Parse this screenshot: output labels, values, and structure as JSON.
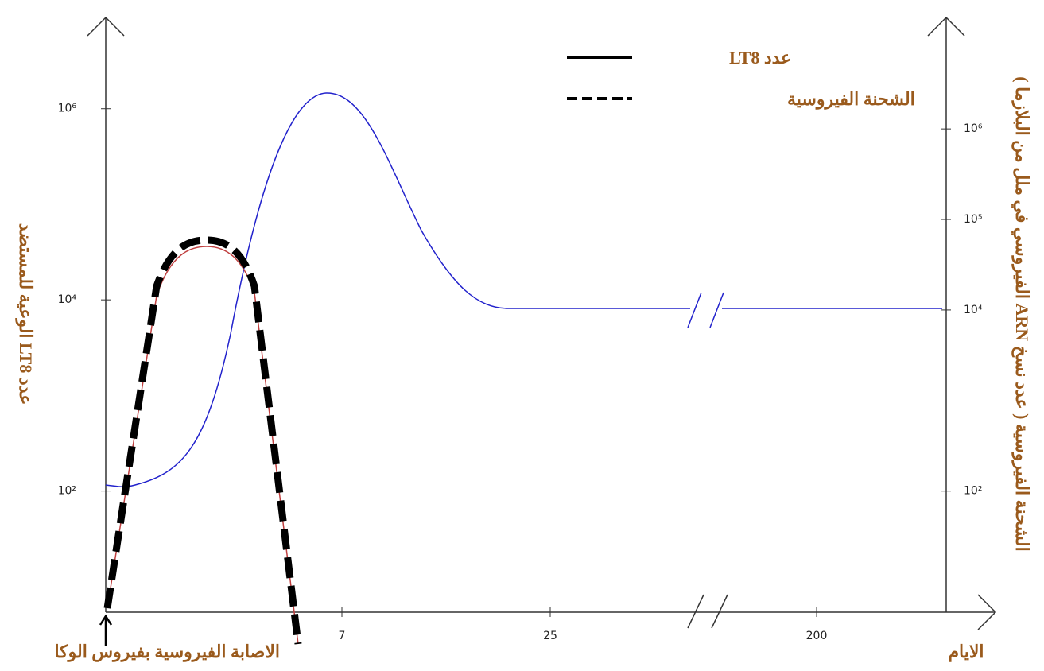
{
  "chart_data": {
    "type": "line",
    "legend": [
      "عدد LT8",
      "الشحنة الفيروسية"
    ],
    "ylabel": "عدد LT8 الوعية للمستضد",
    "y2label": "الشحنة الفيروسية ( عدد نسخ ARN الفيروسي في ملل من البلازما )",
    "xlabel": "الايام",
    "annotation": "الاصابة الفيروسية بفيروس الوكا",
    "xticks": [
      7,
      25,
      200
    ],
    "log_scale": true,
    "ylim": [
      5.4,
      9000000
    ],
    "yticks": [
      {
        "value": 1000000,
        "label": "10⁶"
      },
      {
        "value": 10000,
        "label": "10⁴"
      },
      {
        "value": 100,
        "label": "10²"
      }
    ],
    "y2lim": [
      4.6,
      17000000
    ],
    "y2ticks": [
      {
        "value": 1000000,
        "label": "10⁶"
      },
      {
        "value": 100000,
        "label": "10⁵"
      },
      {
        "value": 10000,
        "label": "10⁴"
      },
      {
        "value": 100,
        "label": "10²"
      }
    ]
  }
}
